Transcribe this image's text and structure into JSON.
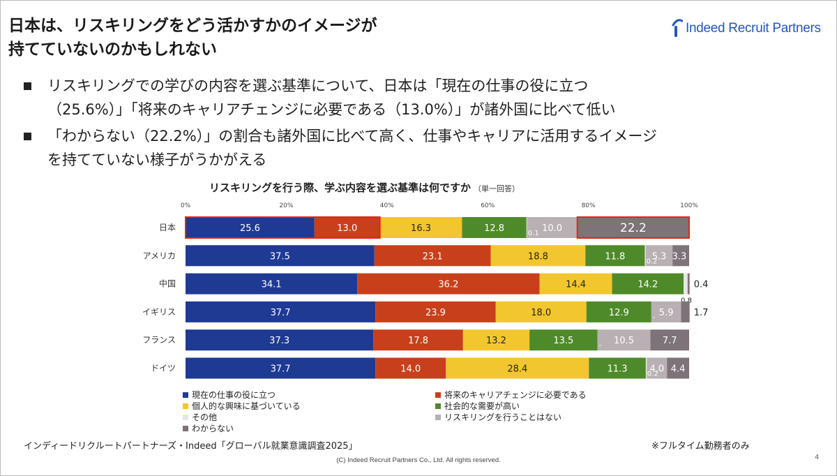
{
  "header": {
    "title_lines": [
      "日本は、リスキリングをどう活かすかのイメージが",
      "持てていないのかもしれない"
    ],
    "logo_text": "Indeed Recruit Partners",
    "logo_icon": "indeed-arc-icon",
    "brand_color": "#2456b8"
  },
  "bullets": [
    {
      "lines": [
        "リスキリングでの学びの内容を選ぶ基準について、日本は「現在の仕事の役に立つ",
        "（25.6%）」「将来のキャリアチェンジに必要である（13.0%）」が諸外国に比べて低い"
      ]
    },
    {
      "lines": [
        "「わからない（22.2%）」の割合も諸外国に比べて高く、仕事やキャリアに活用するイメージ",
        "を持てていない様子がうかがえる"
      ]
    }
  ],
  "chart_data": {
    "type": "bar",
    "orientation": "horizontal",
    "stacked": true,
    "title": "リスキリングを行う際、学ぶ内容を選ぶ基準は何ですか",
    "subtitle": "（単一回答）",
    "categories": [
      "日本",
      "アメリカ",
      "中国",
      "イギリス",
      "フランス",
      "ドイツ"
    ],
    "x_ticks": [
      "0%",
      "20%",
      "40%",
      "60%",
      "80%",
      "100%"
    ],
    "xlim": [
      0,
      100
    ],
    "series": [
      {
        "name": "現在の仕事の役に立つ",
        "color": "#1f3a93",
        "values": [
          25.6,
          37.5,
          34.1,
          37.7,
          37.3,
          37.7
        ]
      },
      {
        "name": "将来のキャリアチェンジに必要である",
        "color": "#c8401b",
        "values": [
          13.0,
          23.1,
          36.2,
          23.9,
          17.8,
          14.0
        ]
      },
      {
        "name": "個人的な興味に基づいている",
        "color": "#f2c62f",
        "values": [
          16.3,
          18.8,
          14.4,
          18.0,
          13.2,
          28.4
        ]
      },
      {
        "name": "社会的な需要が高い",
        "color": "#4f8a2a",
        "values": [
          12.8,
          11.8,
          14.2,
          12.9,
          13.5,
          11.3
        ]
      },
      {
        "name": "その他",
        "color": "#e6e6e6",
        "values": [
          0.1,
          0.2,
          0.8,
          0.0,
          0.0,
          0.2
        ]
      },
      {
        "name": "リスキリングを行うことはない",
        "color": "#b9b0b3",
        "values": [
          10.0,
          5.3,
          0.0,
          5.9,
          10.5,
          4.0
        ]
      },
      {
        "name": "わからない",
        "color": "#7e7378",
        "values": [
          22.2,
          3.3,
          0.4,
          1.7,
          7.7,
          4.4
        ]
      }
    ],
    "labels": [
      [
        "25.6",
        "13.0",
        "16.3",
        "12.8",
        "0.1",
        "10.0",
        "22.2"
      ],
      [
        "37.5",
        "23.1",
        "18.8",
        "11.8",
        "0.2",
        "5.3",
        "3.3"
      ],
      [
        "34.1",
        "36.2",
        "14.4",
        "14.2",
        "0.8",
        "-",
        "0.4"
      ],
      [
        "37.7",
        "23.9",
        "18.0",
        "12.9",
        "-",
        "5.9",
        "1.7"
      ],
      [
        "37.3",
        "17.8",
        "13.2",
        "13.5",
        "-",
        "10.5",
        "7.7"
      ],
      [
        "37.7",
        "14.0",
        "28.4",
        "11.3",
        "0.2",
        "4.0",
        "4.4"
      ]
    ],
    "highlights": [
      {
        "category": "日本",
        "series": [
          "現在の仕事の役に立つ",
          "将来のキャリアチェンジに必要である"
        ]
      },
      {
        "category": "日本",
        "series": [
          "わからない"
        ]
      }
    ],
    "highlight_color": "#e0261d"
  },
  "footer": {
    "source": "インディードリクルートパートナーズ・Indeed「グローバル就業意識調査2025」",
    "note": "※フルタイム勤務者のみ",
    "copyright": "(C) Indeed Recruit Partners Co., Ltd. All rights reserved.",
    "page_number": "4"
  }
}
